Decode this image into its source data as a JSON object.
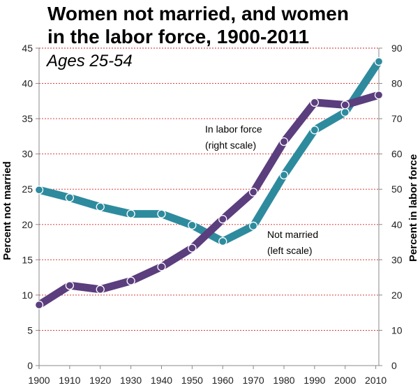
{
  "chart_data": {
    "type": "line",
    "title_line1": "Women not married, and women",
    "title_line2": "in the labor force, 1900-2011",
    "subtitle": "Ages 25-54",
    "x": [
      1900,
      1910,
      1920,
      1930,
      1940,
      1950,
      1960,
      1970,
      1980,
      1990,
      2000,
      2010
    ],
    "xticks": [
      "1900",
      "1910",
      "1920",
      "1930",
      "1940",
      "1950",
      "1960",
      "1970",
      "1980",
      "1990",
      "2000",
      "2010"
    ],
    "xlim": [
      1900,
      2011
    ],
    "ylabel_left": "Percent not married",
    "ylabel_right": "Percent in labor force",
    "ylim_left": [
      0,
      45
    ],
    "ylim_right": [
      0,
      90
    ],
    "yticks_left": [
      "0",
      "5",
      "10",
      "15",
      "20",
      "25",
      "30",
      "35",
      "40",
      "45"
    ],
    "yticks_right": [
      "0",
      "10",
      "20",
      "30",
      "40",
      "50",
      "60",
      "70",
      "80",
      "90"
    ],
    "grid": true,
    "series": [
      {
        "name": "Not married",
        "axis": "left",
        "color": "#2e8b9e",
        "x": [
          1900,
          1910,
          1920,
          1930,
          1940,
          1950,
          1960,
          1970,
          1980,
          1990,
          2000,
          2011
        ],
        "values": [
          24.9,
          23.8,
          22.5,
          21.5,
          21.5,
          19.9,
          17.6,
          19.8,
          27.0,
          33.4,
          35.9,
          43.1
        ]
      },
      {
        "name": "In labor force",
        "axis": "right",
        "color": "#5b3e7e",
        "x": [
          1900,
          1910,
          1920,
          1930,
          1940,
          1950,
          1960,
          1970,
          1980,
          1990,
          2000,
          2011
        ],
        "values": [
          17.2,
          22.7,
          21.6,
          24.0,
          28.0,
          33.3,
          41.5,
          49.2,
          63.5,
          74.6,
          73.9,
          76.7
        ]
      }
    ],
    "annotations": {
      "labor_line1": "In labor force",
      "labor_line2": "(right scale)",
      "married_line1": "Not married",
      "married_line2": "(left scale)"
    }
  }
}
